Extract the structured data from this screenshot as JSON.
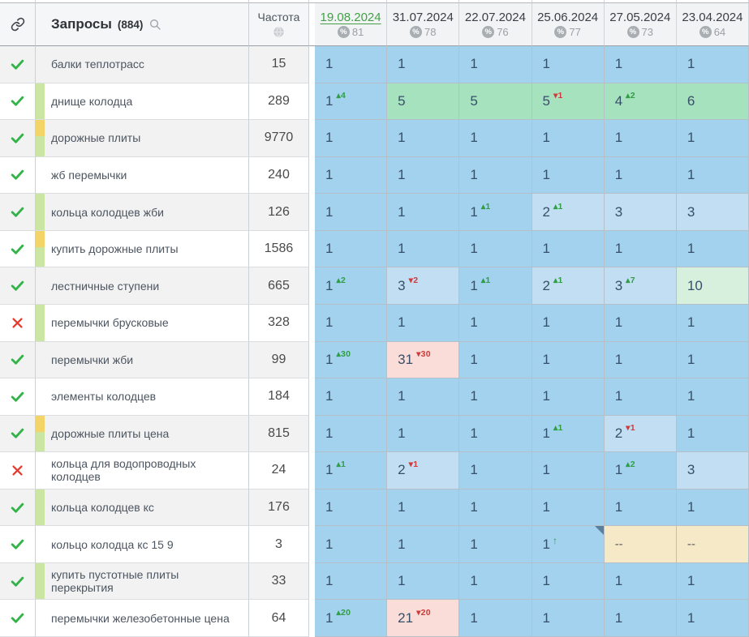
{
  "header": {
    "queries_title": "Запросы",
    "queries_count": "(884)",
    "frequency_title": "Частота",
    "percent_symbol": "%"
  },
  "dates": [
    {
      "date": "19.08.2024",
      "percent": "81",
      "current": true
    },
    {
      "date": "31.07.2024",
      "percent": "78",
      "current": false
    },
    {
      "date": "22.07.2024",
      "percent": "76",
      "current": false
    },
    {
      "date": "25.06.2024",
      "percent": "77",
      "current": false
    },
    {
      "date": "27.05.2024",
      "percent": "73",
      "current": false
    },
    {
      "date": "23.04.2024",
      "percent": "64",
      "current": false
    }
  ],
  "colors": {
    "current_date_green": "#43a047",
    "check_green": "#35b34a",
    "cross_red": "#e23d30",
    "pos_top1_blue": "#a3d2ee",
    "pos_top3_blue": "#c1def2",
    "pos_top10_green": "#a7e2bf",
    "pos_10_pale_green": "#d6f0dd",
    "pos_out_pink": "#fadcd8",
    "no_data_beige": "#f5e9c7",
    "strip_green": "#cbe6a3",
    "strip_yellow": "#f3d468",
    "delta_up_green": "#2f9e44",
    "delta_down_red": "#cf3b3b"
  },
  "rows": [
    {
      "status": "ok",
      "strip": "none",
      "query": "балки теплотрасс",
      "freq": "15",
      "cells": [
        {
          "v": "1",
          "t": "b1"
        },
        {
          "v": "1",
          "t": "b1"
        },
        {
          "v": "1",
          "t": "b1"
        },
        {
          "v": "1",
          "t": "b1"
        },
        {
          "v": "1",
          "t": "b1"
        },
        {
          "v": "1",
          "t": "b1"
        }
      ]
    },
    {
      "status": "ok",
      "strip": "green",
      "query": "днище колодца",
      "freq": "289",
      "cells": [
        {
          "v": "1",
          "t": "b1",
          "dir": "up",
          "delta": "4"
        },
        {
          "v": "5",
          "t": "g1"
        },
        {
          "v": "5",
          "t": "g1"
        },
        {
          "v": "5",
          "t": "g1",
          "dir": "down",
          "delta": "1"
        },
        {
          "v": "4",
          "t": "g1",
          "dir": "up",
          "delta": "2"
        },
        {
          "v": "6",
          "t": "g1"
        }
      ]
    },
    {
      "status": "ok",
      "strip": "yellow-green",
      "query": "дорожные плиты",
      "freq": "9770",
      "cells": [
        {
          "v": "1",
          "t": "b1"
        },
        {
          "v": "1",
          "t": "b1"
        },
        {
          "v": "1",
          "t": "b1"
        },
        {
          "v": "1",
          "t": "b1"
        },
        {
          "v": "1",
          "t": "b1"
        },
        {
          "v": "1",
          "t": "b1"
        }
      ]
    },
    {
      "status": "ok",
      "strip": "none",
      "query": "жб перемычки",
      "freq": "240",
      "cells": [
        {
          "v": "1",
          "t": "b1"
        },
        {
          "v": "1",
          "t": "b1"
        },
        {
          "v": "1",
          "t": "b1"
        },
        {
          "v": "1",
          "t": "b1"
        },
        {
          "v": "1",
          "t": "b1"
        },
        {
          "v": "1",
          "t": "b1"
        }
      ]
    },
    {
      "status": "ok",
      "strip": "green",
      "query": "кольца колодцев жби",
      "freq": "126",
      "cells": [
        {
          "v": "1",
          "t": "b1"
        },
        {
          "v": "1",
          "t": "b1"
        },
        {
          "v": "1",
          "t": "b1",
          "dir": "up",
          "delta": "1"
        },
        {
          "v": "2",
          "t": "b2",
          "dir": "up",
          "delta": "1"
        },
        {
          "v": "3",
          "t": "b2"
        },
        {
          "v": "3",
          "t": "b2"
        }
      ]
    },
    {
      "status": "ok",
      "strip": "yellow-green",
      "query": "купить дорожные плиты",
      "freq": "1586",
      "cells": [
        {
          "v": "1",
          "t": "b1"
        },
        {
          "v": "1",
          "t": "b1"
        },
        {
          "v": "1",
          "t": "b1"
        },
        {
          "v": "1",
          "t": "b1"
        },
        {
          "v": "1",
          "t": "b1"
        },
        {
          "v": "1",
          "t": "b1"
        }
      ]
    },
    {
      "status": "ok",
      "strip": "none",
      "query": "лестничные ступени",
      "freq": "665",
      "cells": [
        {
          "v": "1",
          "t": "b1",
          "dir": "up",
          "delta": "2"
        },
        {
          "v": "3",
          "t": "b2",
          "dir": "down",
          "delta": "2"
        },
        {
          "v": "1",
          "t": "b1",
          "dir": "up",
          "delta": "1"
        },
        {
          "v": "2",
          "t": "b2",
          "dir": "up",
          "delta": "1"
        },
        {
          "v": "3",
          "t": "b2",
          "dir": "up",
          "delta": "7"
        },
        {
          "v": "10",
          "t": "g2"
        }
      ]
    },
    {
      "status": "fail",
      "strip": "green",
      "query": "перемычки брусковые",
      "freq": "328",
      "cells": [
        {
          "v": "1",
          "t": "b1"
        },
        {
          "v": "1",
          "t": "b1"
        },
        {
          "v": "1",
          "t": "b1"
        },
        {
          "v": "1",
          "t": "b1"
        },
        {
          "v": "1",
          "t": "b1"
        },
        {
          "v": "1",
          "t": "b1"
        }
      ]
    },
    {
      "status": "ok",
      "strip": "none",
      "query": "перемычки жби",
      "freq": "99",
      "cells": [
        {
          "v": "1",
          "t": "b1",
          "dir": "up",
          "delta": "30"
        },
        {
          "v": "31",
          "t": "r1",
          "dir": "down",
          "delta": "30"
        },
        {
          "v": "1",
          "t": "b1"
        },
        {
          "v": "1",
          "t": "b1"
        },
        {
          "v": "1",
          "t": "b1"
        },
        {
          "v": "1",
          "t": "b1"
        }
      ]
    },
    {
      "status": "ok",
      "strip": "none",
      "query": "элементы колодцев",
      "freq": "184",
      "cells": [
        {
          "v": "1",
          "t": "b1"
        },
        {
          "v": "1",
          "t": "b1"
        },
        {
          "v": "1",
          "t": "b1"
        },
        {
          "v": "1",
          "t": "b1"
        },
        {
          "v": "1",
          "t": "b1"
        },
        {
          "v": "1",
          "t": "b1"
        }
      ]
    },
    {
      "status": "ok",
      "strip": "yellow-green",
      "query": "дорожные плиты цена",
      "freq": "815",
      "cells": [
        {
          "v": "1",
          "t": "b1"
        },
        {
          "v": "1",
          "t": "b1"
        },
        {
          "v": "1",
          "t": "b1"
        },
        {
          "v": "1",
          "t": "b1",
          "dir": "up",
          "delta": "1"
        },
        {
          "v": "2",
          "t": "b2",
          "dir": "down",
          "delta": "1"
        },
        {
          "v": "1",
          "t": "b1"
        }
      ]
    },
    {
      "status": "fail",
      "strip": "none",
      "query": "кольца для водопроводных колодцев",
      "freq": "24",
      "cells": [
        {
          "v": "1",
          "t": "b1",
          "dir": "up",
          "delta": "1"
        },
        {
          "v": "2",
          "t": "b2",
          "dir": "down",
          "delta": "1"
        },
        {
          "v": "1",
          "t": "b1"
        },
        {
          "v": "1",
          "t": "b1"
        },
        {
          "v": "1",
          "t": "b1",
          "dir": "up",
          "delta": "2"
        },
        {
          "v": "3",
          "t": "b2"
        }
      ]
    },
    {
      "status": "ok",
      "strip": "green",
      "query": "кольца колодцев кс",
      "freq": "176",
      "cells": [
        {
          "v": "1",
          "t": "b1"
        },
        {
          "v": "1",
          "t": "b1"
        },
        {
          "v": "1",
          "t": "b1"
        },
        {
          "v": "1",
          "t": "b1"
        },
        {
          "v": "1",
          "t": "b1"
        },
        {
          "v": "1",
          "t": "b1"
        }
      ]
    },
    {
      "status": "ok",
      "strip": "none",
      "query": "кольцо колодца кс 15 9",
      "freq": "3",
      "cells": [
        {
          "v": "1",
          "t": "b1"
        },
        {
          "v": "1",
          "t": "b1"
        },
        {
          "v": "1",
          "t": "b1"
        },
        {
          "v": "1",
          "t": "b1",
          "arrow": true,
          "marker": true
        },
        {
          "v": "--",
          "t": "y1"
        },
        {
          "v": "--",
          "t": "y1"
        }
      ]
    },
    {
      "status": "ok",
      "strip": "green",
      "query": "купить пустотные плиты перекрытия",
      "freq": "33",
      "cells": [
        {
          "v": "1",
          "t": "b1"
        },
        {
          "v": "1",
          "t": "b1"
        },
        {
          "v": "1",
          "t": "b1"
        },
        {
          "v": "1",
          "t": "b1"
        },
        {
          "v": "1",
          "t": "b1"
        },
        {
          "v": "1",
          "t": "b1"
        }
      ]
    },
    {
      "status": "ok",
      "strip": "none",
      "query": "перемычки железобетонные цена",
      "freq": "64",
      "cells": [
        {
          "v": "1",
          "t": "b1",
          "dir": "up",
          "delta": "20"
        },
        {
          "v": "21",
          "t": "r1",
          "dir": "down",
          "delta": "20"
        },
        {
          "v": "1",
          "t": "b1"
        },
        {
          "v": "1",
          "t": "b1"
        },
        {
          "v": "1",
          "t": "b1"
        },
        {
          "v": "1",
          "t": "b1"
        }
      ]
    }
  ]
}
